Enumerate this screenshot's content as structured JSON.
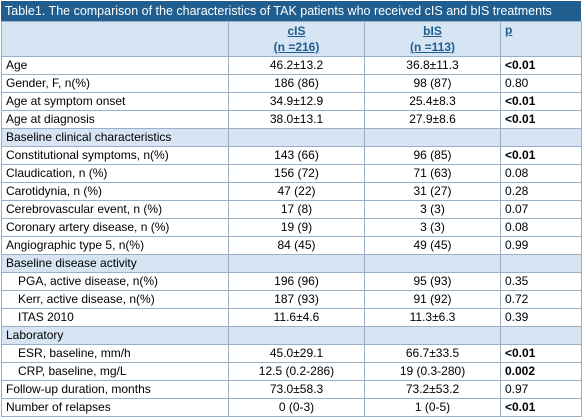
{
  "title": "Table1. The comparison of the characteristics of TAK patients who received cIS and bIS treatments",
  "header": {
    "col1_line1": "cIS",
    "col1_line2": "(n =216)",
    "col2_line1": "bIS",
    "col2_line2": "(n =113)",
    "col3": "p"
  },
  "rows": [
    {
      "label": "Age",
      "cis": "46.2±13.2",
      "bis": "36.8±11.3",
      "p": "<0.01",
      "bold": true
    },
    {
      "label": "Gender, F, n(%)",
      "cis": "186 (86)",
      "bis": "98 (87)",
      "p": "0.80",
      "bold": false
    },
    {
      "label": "Age at symptom onset",
      "cis": "34.9±12.9",
      "bis": "25.4±8.3",
      "p": "<0.01",
      "bold": true
    },
    {
      "label": "Age at diagnosis",
      "cis": "38.0±13.1",
      "bis": "27.9±8.6",
      "p": "<0.01",
      "bold": true
    },
    {
      "section": "Baseline clinical characteristics"
    },
    {
      "label": "Constitutional symptoms, n(%)",
      "cis": "143 (66)",
      "bis": "96 (85)",
      "p": "<0.01",
      "bold": true
    },
    {
      "label": "Claudication, n (%)",
      "cis": "156 (72)",
      "bis": "71 (63)",
      "p": "0.08",
      "bold": false
    },
    {
      "label": "Carotidynia, n (%)",
      "cis": "47 (22)",
      "bis": "31 (27)",
      "p": "0.28",
      "bold": false
    },
    {
      "label": "Cerebrovascular event, n (%)",
      "cis": "17 (8)",
      "bis": "3 (3)",
      "p": "0.07",
      "bold": false
    },
    {
      "label": "Coronary artery disease, n (%)",
      "cis": "19 (9)",
      "bis": "3 (3)",
      "p": "0.08",
      "bold": false
    },
    {
      "label": "Angiographic type 5, n(%)",
      "cis": "84 (45)",
      "bis": "49 (45)",
      "p": "0.99",
      "bold": false
    },
    {
      "section": "Baseline disease activity"
    },
    {
      "label": "PGA, active disease, n(%)",
      "cis": "196 (96)",
      "bis": "95 (93)",
      "p": "0.35",
      "bold": false,
      "indent": true
    },
    {
      "label": "Kerr, active disease, n(%)",
      "cis": "187 (93)",
      "bis": "91 (92)",
      "p": "0.72",
      "bold": false,
      "indent": true
    },
    {
      "label": "ITAS 2010",
      "cis": "11.6±4.6",
      "bis": "11.3±6.3",
      "p": "0.39",
      "bold": false,
      "indent": true
    },
    {
      "section": "Laboratory"
    },
    {
      "label": "ESR, baseline, mm/h",
      "cis": "45.0±29.1",
      "bis": "66.7±33.5",
      "p": "<0.01",
      "bold": true,
      "indent": true
    },
    {
      "label": "CRP, baseline, mg/L",
      "cis": "12.5 (0.2-286)",
      "bis": "19 (0.3-280)",
      "p": "0.002",
      "bold": true,
      "indent": true
    },
    {
      "label": "Follow-up duration, months",
      "cis": "73.0±58.3",
      "bis": "73.2±53.2",
      "p": "0.97",
      "bold": false
    },
    {
      "label": "Number of relapses",
      "cis": "0 (0-3)",
      "bis": "1 (0-5)",
      "p": "<0.01",
      "bold": true
    }
  ]
}
